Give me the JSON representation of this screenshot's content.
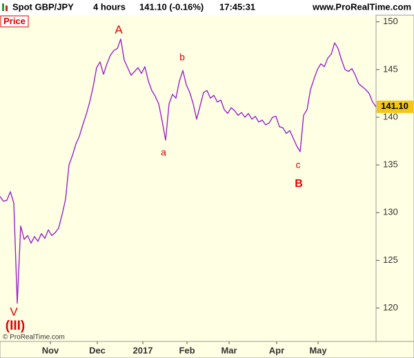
{
  "header": {
    "instrument": "Spot GBP/JPY",
    "period": "4 hours",
    "quote": "141.10 (-0.16%)",
    "time": "17:45:31",
    "site": "www.ProRealTime.com"
  },
  "chart_data": {
    "type": "line",
    "panel_label": "Price",
    "copyright": "© ProRealTime.com",
    "series": [
      {
        "name": "Spot GBP/JPY",
        "color": "#9a22cc",
        "values": [
          131.7,
          131.2,
          131.3,
          132.2,
          131.0,
          120.5,
          128.6,
          127.2,
          127.6,
          126.8,
          127.5,
          127.0,
          127.8,
          127.3,
          128.2,
          127.6,
          127.9,
          128.4,
          129.8,
          131.4,
          135.0,
          136.0,
          137.2,
          138.0,
          139.2,
          140.3,
          141.6,
          143.2,
          145.2,
          145.8,
          144.5,
          145.6,
          146.5,
          147.0,
          147.2,
          148.2,
          146.0,
          145.2,
          144.4,
          144.8,
          145.2,
          144.6,
          145.3,
          143.8,
          142.8,
          142.2,
          141.4,
          139.6,
          137.6,
          141.4,
          142.4,
          142.0,
          143.8,
          144.9,
          143.4,
          142.6,
          141.4,
          139.8,
          141.2,
          142.6,
          142.8,
          142.0,
          142.3,
          141.6,
          141.8,
          140.8,
          140.4,
          141.0,
          140.7,
          140.2,
          140.5,
          140.0,
          140.4,
          139.8,
          140.1,
          139.5,
          139.7,
          139.2,
          139.4,
          140.0,
          140.1,
          139.0,
          138.9,
          138.3,
          138.6,
          137.8,
          137.0,
          136.4,
          140.2,
          140.8,
          142.9,
          144.0,
          145.0,
          145.6,
          145.3,
          146.2,
          146.6,
          147.8,
          147.2,
          146.0,
          145.0,
          144.8,
          145.1,
          144.4,
          143.5,
          143.2,
          142.9,
          142.5,
          141.6,
          141.1
        ],
        "last_label": "141.10"
      }
    ],
    "xlim": [
      0,
      109
    ],
    "xticks": [
      {
        "value": 14.6,
        "label": "Nov"
      },
      {
        "value": 28.2,
        "label": "Dec"
      },
      {
        "value": 41.4,
        "label": "2017"
      },
      {
        "value": 54.2,
        "label": "Feb"
      },
      {
        "value": 66.4,
        "label": "Mar"
      },
      {
        "value": 80.2,
        "label": "Apr"
      },
      {
        "value": 92.2,
        "label": "May"
      }
    ],
    "ylim": [
      116.5,
      150.7
    ],
    "yticks": [
      120,
      125,
      130,
      135,
      140,
      145,
      150
    ],
    "annotations": [
      "A",
      "b",
      "a",
      "c",
      "B",
      "V",
      "(III)"
    ]
  }
}
